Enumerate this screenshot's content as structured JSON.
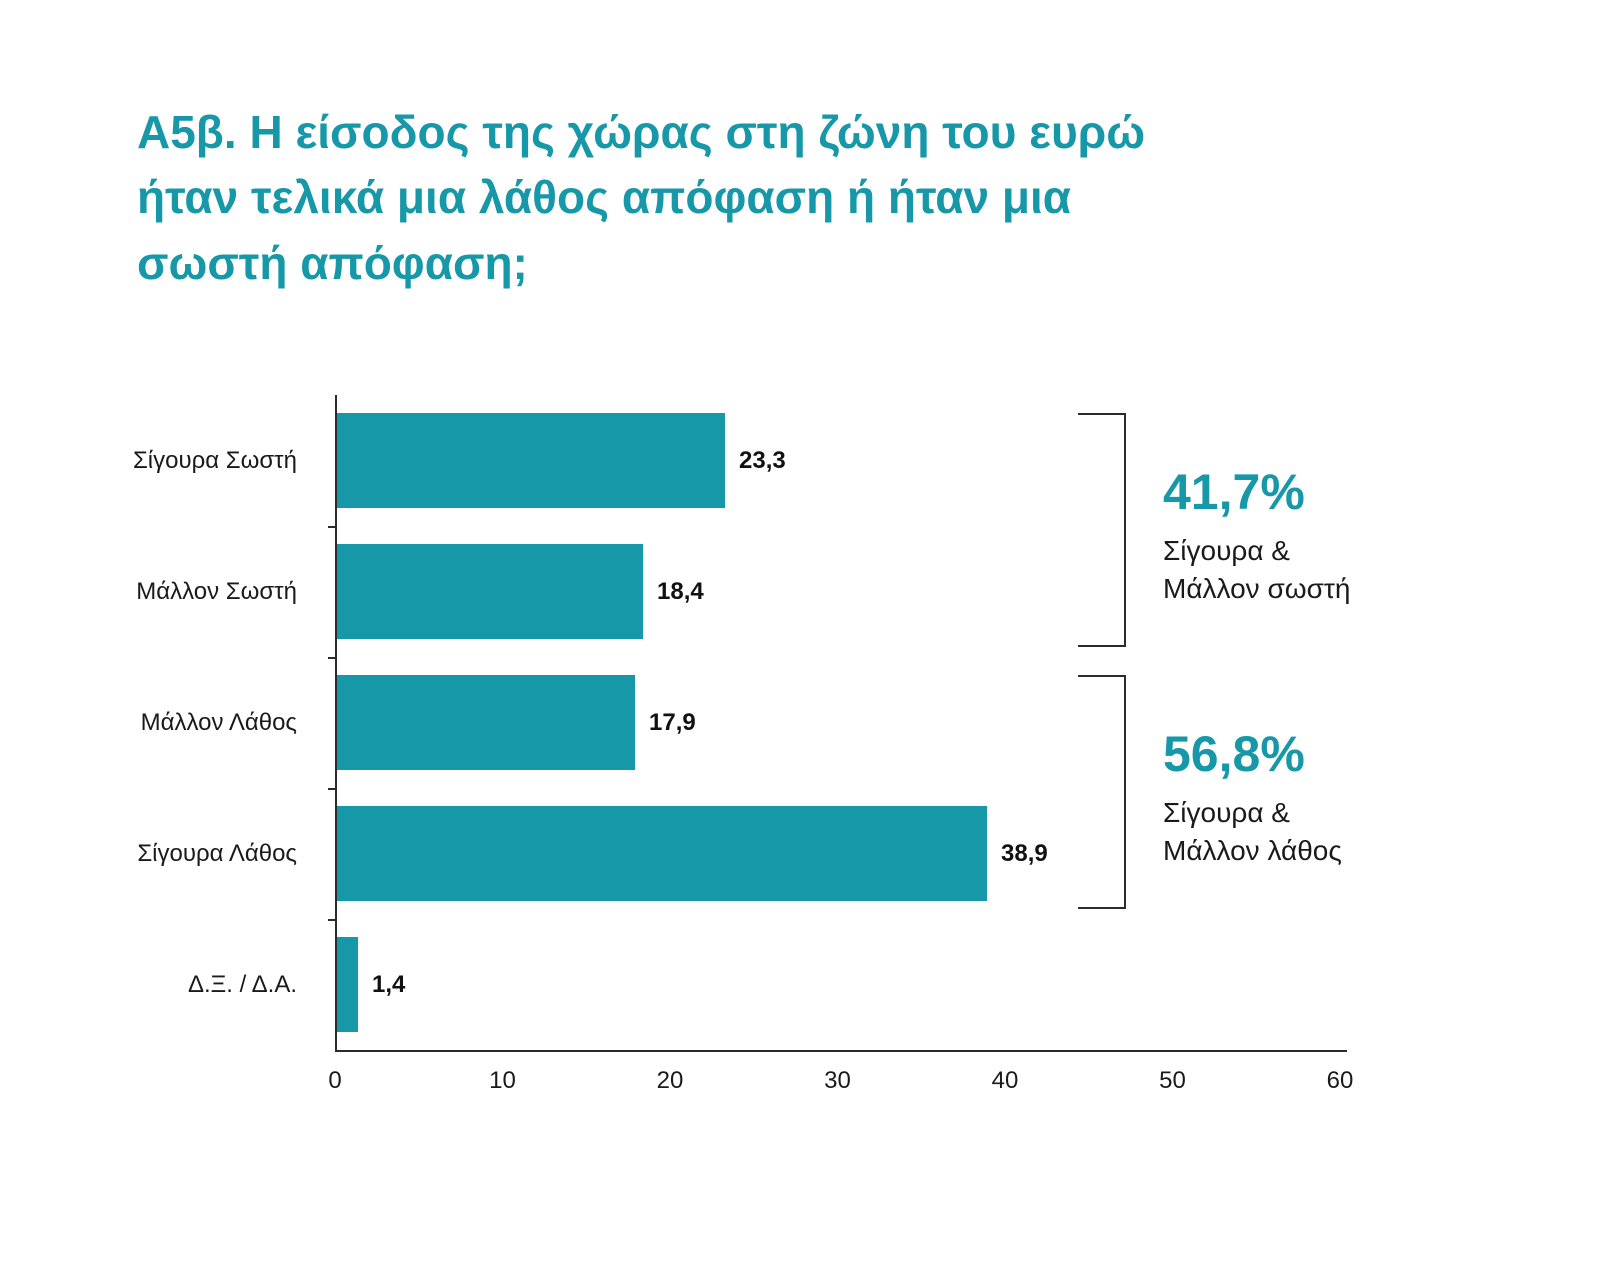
{
  "title": "Α5β. Η είσοδος της χώρας στη ζώνη του ευρώ ήταν τελικά μια λάθος απόφαση ή ήταν μια σωστή απόφαση;",
  "colors": {
    "bar": "#1798A8",
    "accent": "#1798A8",
    "axis": "#2b2b2b",
    "text": "#1a1a1a"
  },
  "chart_data": {
    "type": "bar",
    "orientation": "horizontal",
    "title": "Α5β. Η είσοδος της χώρας στη ζώνη του ευρώ ήταν τελικά μια λάθος απόφαση ή ήταν μια σωστή απόφαση;",
    "categories": [
      "Σίγουρα Σωστή",
      "Μάλλον Σωστή",
      "Μάλλον Λάθος",
      "Σίγουρα Λάθος",
      "Δ.Ξ. / Δ.Α."
    ],
    "values": [
      23.3,
      18.4,
      17.9,
      38.9,
      1.4
    ],
    "value_labels": [
      "23,3",
      "18,4",
      "17,9",
      "38,9",
      "1,4"
    ],
    "xlabel": "",
    "ylabel": "",
    "xlim": [
      0,
      60
    ],
    "x_ticks": [
      0,
      10,
      20,
      30,
      40,
      50,
      60
    ],
    "grid": false,
    "legend": false,
    "annotations": [
      {
        "value": "41,7%",
        "lines": [
          "Σίγουρα &",
          "Μάλλον σωστή"
        ],
        "from_row": 0,
        "to_row": 1
      },
      {
        "value": "56,8%",
        "lines": [
          "Σίγουρα &",
          "Μάλλον λάθος"
        ],
        "from_row": 2,
        "to_row": 3
      }
    ]
  }
}
